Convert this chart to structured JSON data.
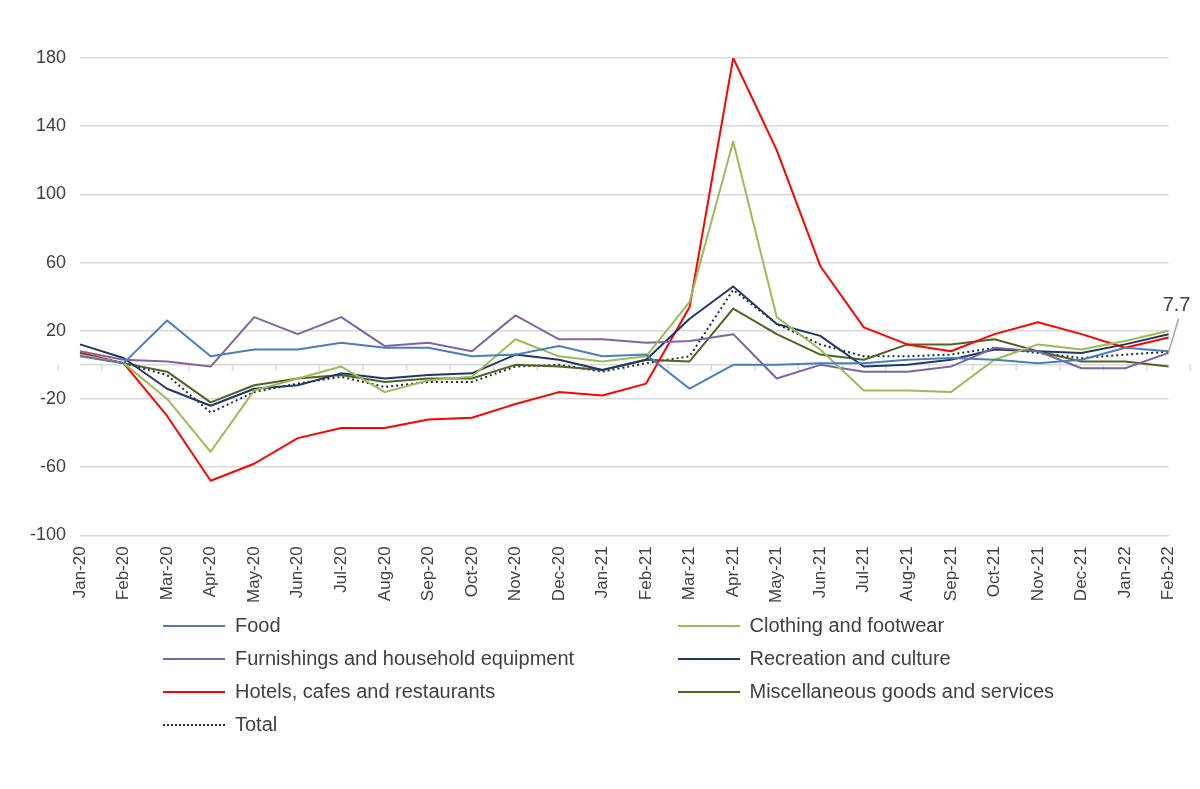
{
  "chart_data": {
    "type": "line",
    "categories": [
      "Jan-20",
      "Feb-20",
      "Mar-20",
      "Apr-20",
      "May-20",
      "Jun-20",
      "Jul-20",
      "Aug-20",
      "Sep-20",
      "Oct-20",
      "Nov-20",
      "Dec-20",
      "Jan-21",
      "Feb-21",
      "Mar-21",
      "Apr-21",
      "May-21",
      "Jun-21",
      "Jul-21",
      "Aug-21",
      "Sep-21",
      "Oct-21",
      "Nov-21",
      "Dec-21",
      "Jan-22",
      "Feb-22"
    ],
    "series": [
      {
        "name": "Food",
        "color": "#4a7ebb",
        "values": [
          5,
          1,
          26,
          5,
          9,
          9,
          13,
          10,
          10,
          5,
          6,
          11,
          5,
          6,
          -14,
          0,
          0,
          1,
          1,
          3,
          4,
          3,
          1,
          3,
          10,
          8
        ]
      },
      {
        "name": "Clothing and footwear",
        "color": "#9bbb59",
        "values": [
          6,
          1,
          -20,
          -51,
          -15,
          -8,
          -1,
          -16,
          -9,
          -7,
          15,
          5,
          2,
          5,
          37,
          131,
          28,
          9,
          -15,
          -15,
          -16,
          3,
          12,
          9,
          14,
          20
        ]
      },
      {
        "name": "Furnishings and household equipment",
        "color": "#8064a2",
        "values": [
          8,
          3,
          2,
          -1,
          28,
          18,
          28,
          11,
          13,
          8,
          29,
          15,
          15,
          13,
          14,
          18,
          -8,
          0,
          -4,
          -4,
          -1,
          10,
          8,
          -2,
          -2,
          7
        ]
      },
      {
        "name": "Recreation and culture",
        "color": "#1f3864",
        "values": [
          12,
          4,
          -14,
          -24,
          -14,
          -12,
          -5,
          -8,
          -6,
          -5,
          6,
          3,
          -3,
          3,
          27,
          46,
          24,
          17,
          -1,
          0,
          3,
          9,
          8,
          7,
          12,
          18
        ]
      },
      {
        "name": "Hotels, cafes and restaurants",
        "color": "#ff0000",
        "values": [
          7,
          1,
          -30,
          -68,
          -58,
          -43,
          -37,
          -37,
          -32,
          -31,
          -23,
          -16,
          -18,
          -11,
          34,
          180,
          126,
          58,
          22,
          12,
          8,
          18,
          25,
          18,
          10,
          16
        ]
      },
      {
        "name": "Miscellaneous goods and services",
        "color": "#4f6228",
        "values": [
          6,
          1,
          -4,
          -22,
          -12,
          -8,
          -6,
          -10,
          -8,
          -8,
          0,
          -1,
          -3,
          3,
          2,
          33,
          18,
          6,
          3,
          12,
          12,
          15,
          8,
          2,
          2,
          -1
        ]
      },
      {
        "name": "Total",
        "color": "#1f2a44",
        "line_style": "dotted",
        "values": [
          7,
          1,
          -6,
          -28,
          -16,
          -11,
          -7,
          -13,
          -10,
          -10,
          -1,
          0,
          -4,
          1,
          5,
          44,
          24,
          12,
          5,
          5,
          6,
          10,
          7,
          4,
          6,
          7.7
        ]
      }
    ],
    "ylim": [
      -100,
      180
    ],
    "yticks": [
      -100,
      -60,
      -20,
      20,
      60,
      100,
      140,
      180
    ],
    "grid": "y",
    "legend": "bottom",
    "line_style": "solid",
    "marker": "none",
    "annotations": [
      {
        "text": "7.7",
        "x": "Feb-22",
        "y": 7.7
      }
    ]
  }
}
